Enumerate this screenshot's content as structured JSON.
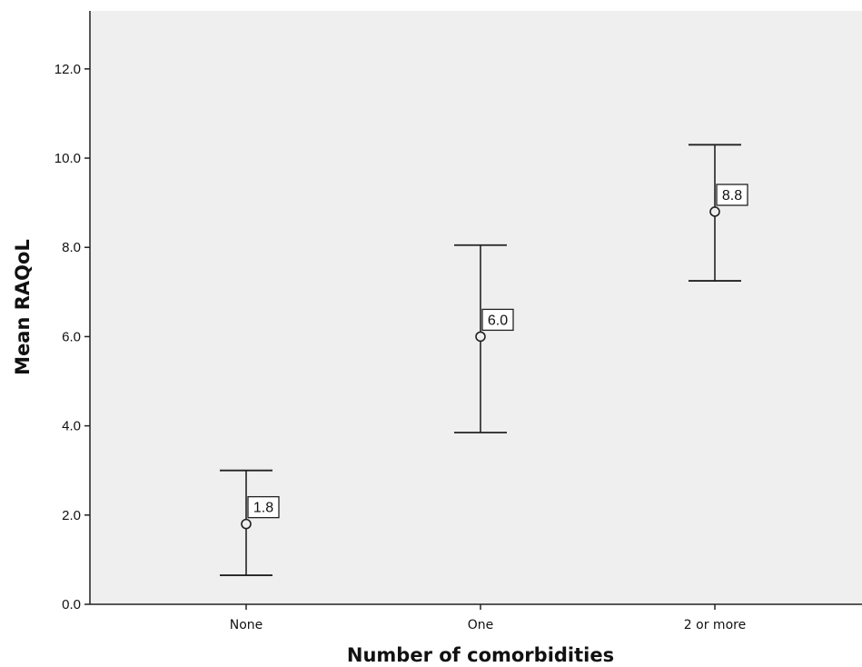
{
  "chart_data": {
    "type": "scatter",
    "subtype": "mean-with-error-bars",
    "xlabel": "Number of comorbidities",
    "ylabel": "Mean RAQoL",
    "categories": [
      "None",
      "One",
      "2 or more"
    ],
    "means": [
      1.8,
      6.0,
      8.8
    ],
    "data_labels": [
      "1.8",
      "6.0",
      "8.8"
    ],
    "error_low": [
      0.65,
      3.85,
      7.25
    ],
    "error_high": [
      3.0,
      8.05,
      10.3
    ],
    "ylim": [
      0,
      13.3
    ],
    "yticks": [
      0,
      2,
      4,
      6,
      8,
      10,
      12
    ],
    "ytick_labels": [
      "0.0",
      "2.0",
      "4.0",
      "6.0",
      "8.0",
      "10.0",
      "12.0"
    ],
    "grid": false,
    "colors": {
      "plot_background": "#efefef",
      "marks": "#222222",
      "label_box": "#ffffff"
    }
  }
}
